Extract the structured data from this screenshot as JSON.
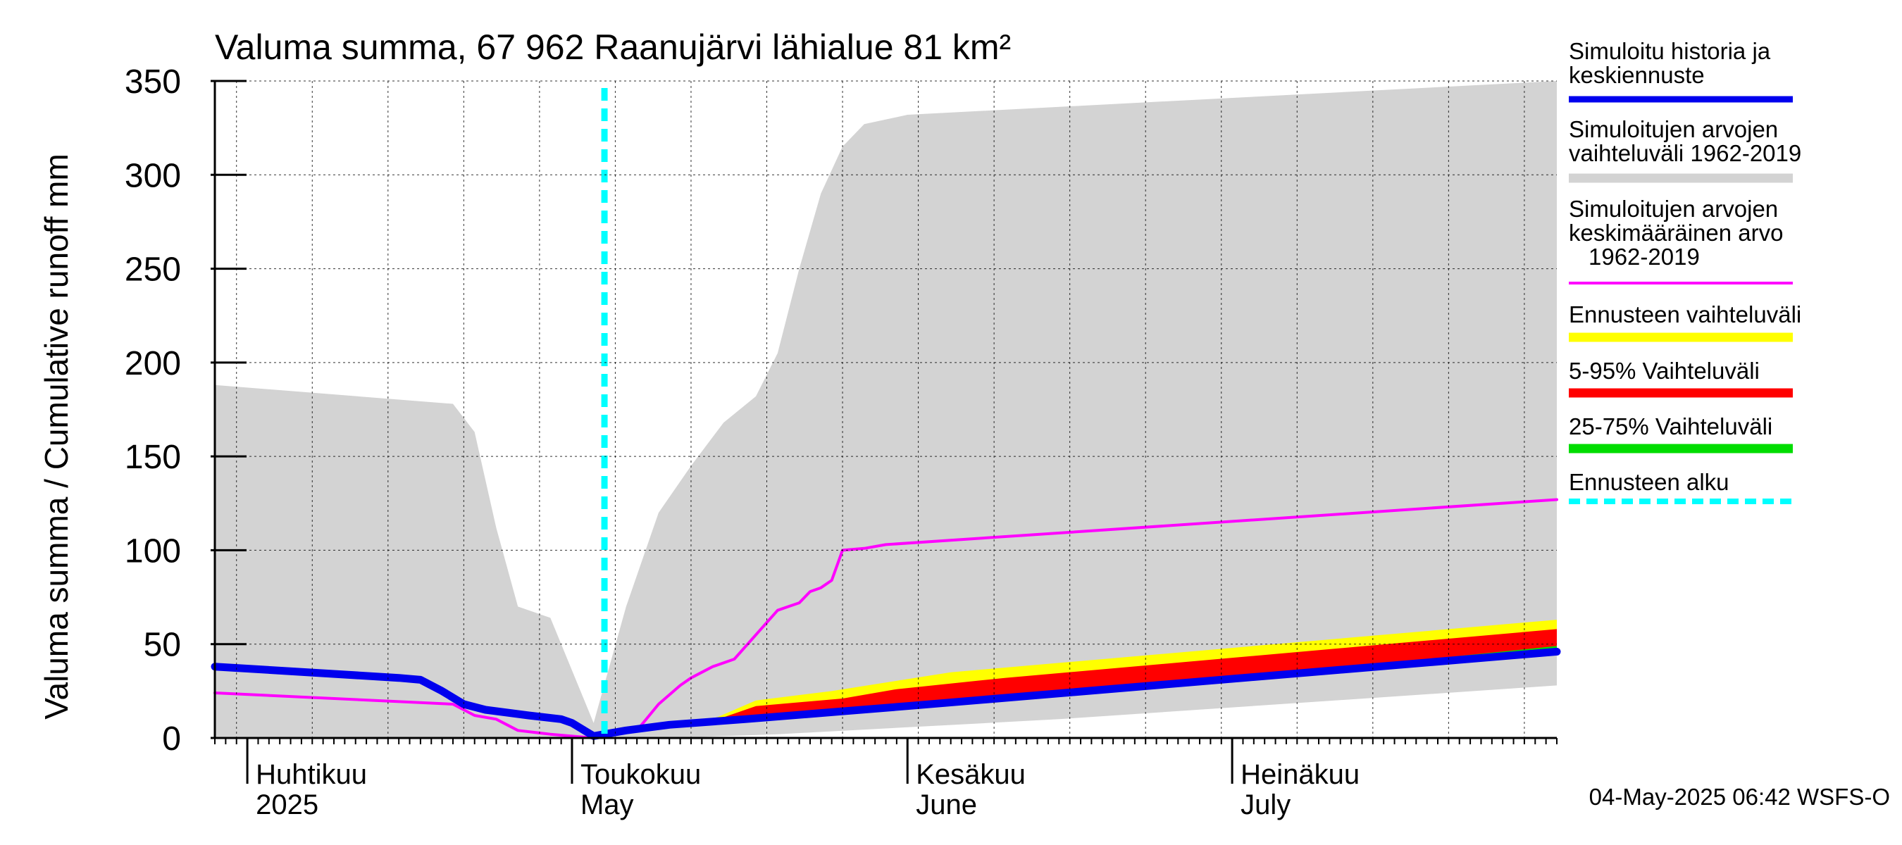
{
  "chart_data": {
    "type": "area",
    "title": "Valuma summa, 67 962 Raanujärvi lähialue 81 km²",
    "ylabel": "Valuma summa / Cumulative runoff    mm",
    "ylim": [
      0,
      350
    ],
    "yticks": [
      0,
      50,
      100,
      150,
      200,
      250,
      300,
      350
    ],
    "x_range": [
      "2025-03-29",
      "2025-07-31"
    ],
    "grid": true,
    "legend_position": "right",
    "months": [
      {
        "date": "2025-04-01",
        "label1": "Huhtikuu",
        "label2": "2025"
      },
      {
        "date": "2025-05-01",
        "label1": "Toukokuu",
        "label2": "May"
      },
      {
        "date": "2025-06-01",
        "label1": "Kesäkuu",
        "label2": "June"
      },
      {
        "date": "2025-07-01",
        "label1": "Heinäkuu",
        "label2": "July"
      }
    ],
    "forecast_start": "2025-05-04",
    "timestamp": "04-May-2025 06:42 WSFS-O",
    "legend": [
      {
        "label": "Simuloitu historia ja keskiennuste",
        "color": "#0000ee",
        "style": "line"
      },
      {
        "label": "Simuloitujen arvojen vaihteluväli 1962-2019",
        "color": "#d3d3d3",
        "style": "band"
      },
      {
        "label": "Simuloitujen arvojen keskimääräinen arvo 1962-2019",
        "color": "#ff00ff",
        "style": "thin"
      },
      {
        "label": "Ennusteen vaihteluväli",
        "color": "#ffff00",
        "style": "band"
      },
      {
        "label": "5-95% Vaihteluväli",
        "color": "#ff0000",
        "style": "band"
      },
      {
        "label": "25-75% Vaihteluväli",
        "color": "#00dd00",
        "style": "band"
      },
      {
        "label": "Ennusteen alku",
        "color": "#00ffff",
        "style": "dashed"
      }
    ],
    "series": [
      {
        "name": "Simuloitujen arvojen vaihteluväli 1962-2019",
        "kind": "band",
        "color": "#d3d3d3",
        "upper": [
          [
            "2025-03-29",
            188
          ],
          [
            "2025-04-20",
            178
          ],
          [
            "2025-04-22",
            163
          ],
          [
            "2025-04-24",
            112
          ],
          [
            "2025-04-26",
            70
          ],
          [
            "2025-04-29",
            64
          ],
          [
            "2025-05-03",
            8
          ],
          [
            "2025-05-06",
            70
          ],
          [
            "2025-05-09",
            120
          ],
          [
            "2025-05-12",
            145
          ],
          [
            "2025-05-15",
            168
          ],
          [
            "2025-05-18",
            182
          ],
          [
            "2025-05-20",
            205
          ],
          [
            "2025-05-22",
            250
          ],
          [
            "2025-05-24",
            290
          ],
          [
            "2025-05-26",
            315
          ],
          [
            "2025-05-28",
            327
          ],
          [
            "2025-06-01",
            332
          ],
          [
            "2025-07-31",
            350
          ]
        ],
        "lower": [
          [
            "2025-03-29",
            0
          ],
          [
            "2025-05-10",
            0
          ],
          [
            "2025-05-20",
            2
          ],
          [
            "2025-06-15",
            10
          ],
          [
            "2025-07-31",
            28
          ]
        ]
      },
      {
        "name": "Ennusteen vaihteluväli",
        "kind": "band",
        "color": "#ffff00",
        "upper": [
          [
            "2025-05-04",
            1
          ],
          [
            "2025-05-14",
            10
          ],
          [
            "2025-05-18",
            20
          ],
          [
            "2025-05-25",
            25
          ],
          [
            "2025-06-05",
            35
          ],
          [
            "2025-07-31",
            63
          ]
        ],
        "lower": [
          [
            "2025-05-04",
            1
          ],
          [
            "2025-05-14",
            9
          ],
          [
            "2025-05-22",
            11
          ],
          [
            "2025-06-15",
            22
          ],
          [
            "2025-07-31",
            45
          ]
        ]
      },
      {
        "name": "5-95% Vaihteluväli",
        "kind": "band",
        "color": "#ff0000",
        "upper": [
          [
            "2025-05-04",
            1
          ],
          [
            "2025-05-14",
            9
          ],
          [
            "2025-05-18",
            17
          ],
          [
            "2025-05-26",
            21
          ],
          [
            "2025-05-31",
            26
          ],
          [
            "2025-06-10",
            32
          ],
          [
            "2025-07-31",
            58
          ]
        ],
        "lower": [
          [
            "2025-05-04",
            1
          ],
          [
            "2025-05-14",
            9
          ],
          [
            "2025-05-22",
            11
          ],
          [
            "2025-06-15",
            22
          ],
          [
            "2025-07-31",
            45
          ]
        ]
      },
      {
        "name": "25-75% Vaihteluväli",
        "kind": "band",
        "color": "#00dd00",
        "upper": [
          [
            "2025-05-04",
            1
          ],
          [
            "2025-05-14",
            9
          ],
          [
            "2025-05-24",
            14
          ],
          [
            "2025-06-20",
            25
          ],
          [
            "2025-07-31",
            49
          ]
        ],
        "lower": [
          [
            "2025-05-04",
            1
          ],
          [
            "2025-05-14",
            9
          ],
          [
            "2025-05-22",
            11
          ],
          [
            "2025-06-15",
            22
          ],
          [
            "2025-07-31",
            45
          ]
        ]
      },
      {
        "name": "Simuloitujen arvojen keskimääräinen arvo 1962-2019",
        "kind": "line",
        "color": "#ff00ff",
        "points": [
          [
            "2025-03-29",
            24
          ],
          [
            "2025-04-20",
            18
          ],
          [
            "2025-04-22",
            12
          ],
          [
            "2025-04-24",
            10
          ],
          [
            "2025-04-26",
            4
          ],
          [
            "2025-04-29",
            2
          ],
          [
            "2025-05-03",
            0
          ],
          [
            "2025-05-07",
            4
          ],
          [
            "2025-05-09",
            18
          ],
          [
            "2025-05-11",
            28
          ],
          [
            "2025-05-12",
            32
          ],
          [
            "2025-05-14",
            38
          ],
          [
            "2025-05-16",
            42
          ],
          [
            "2025-05-18",
            55
          ],
          [
            "2025-05-20",
            68
          ],
          [
            "2025-05-21",
            70
          ],
          [
            "2025-05-22",
            72
          ],
          [
            "2025-05-23",
            78
          ],
          [
            "2025-05-24",
            80
          ],
          [
            "2025-05-25",
            84
          ],
          [
            "2025-05-26",
            100
          ],
          [
            "2025-05-28",
            101
          ],
          [
            "2025-05-30",
            103
          ],
          [
            "2025-07-31",
            127
          ]
        ]
      },
      {
        "name": "Simuloitu historia ja keskiennuste",
        "kind": "line",
        "color": "#0000ee",
        "points": [
          [
            "2025-03-29",
            38
          ],
          [
            "2025-04-15",
            32
          ],
          [
            "2025-04-17",
            31
          ],
          [
            "2025-04-19",
            25
          ],
          [
            "2025-04-21",
            18
          ],
          [
            "2025-04-23",
            15
          ],
          [
            "2025-04-27",
            12
          ],
          [
            "2025-04-30",
            10
          ],
          [
            "2025-05-01",
            8
          ],
          [
            "2025-05-03",
            1
          ],
          [
            "2025-05-06",
            4
          ],
          [
            "2025-05-10",
            7
          ],
          [
            "2025-05-17",
            10
          ],
          [
            "2025-06-01",
            17
          ],
          [
            "2025-07-31",
            46
          ]
        ]
      }
    ]
  }
}
